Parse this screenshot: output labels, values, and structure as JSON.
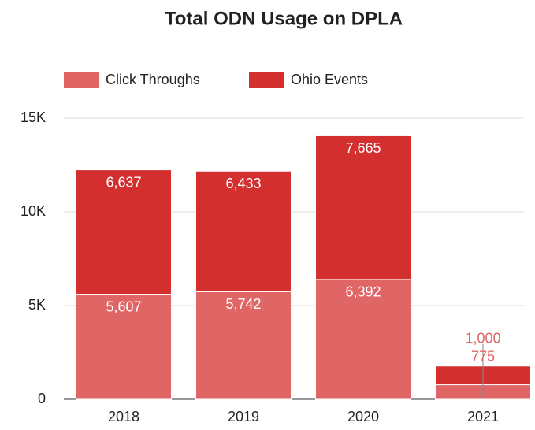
{
  "chart_data": {
    "type": "stacked_bar",
    "title": "Total ODN Usage on DPLA",
    "categories": [
      "2018",
      "2019",
      "2020",
      "2021"
    ],
    "series": [
      {
        "name": "Click Throughs",
        "color": "#e06666",
        "values": [
          5607,
          5742,
          6392,
          775
        ],
        "value_labels": [
          "5,607",
          "5,742",
          "6,392",
          "775"
        ]
      },
      {
        "name": "Ohio Events",
        "color": "#d32f2f",
        "values": [
          6637,
          6433,
          7665,
          1000
        ],
        "value_labels": [
          "6,637",
          "6,433",
          "7,665",
          "1,000"
        ]
      }
    ],
    "ylim": [
      0,
      15000
    ],
    "yticks": [
      0,
      {
        "value": 5000,
        "label": "5K"
      },
      {
        "value": 10000,
        "label": "10K"
      },
      {
        "value": 15000,
        "label": "15K"
      }
    ],
    "grid": true,
    "legend": "top-left"
  }
}
